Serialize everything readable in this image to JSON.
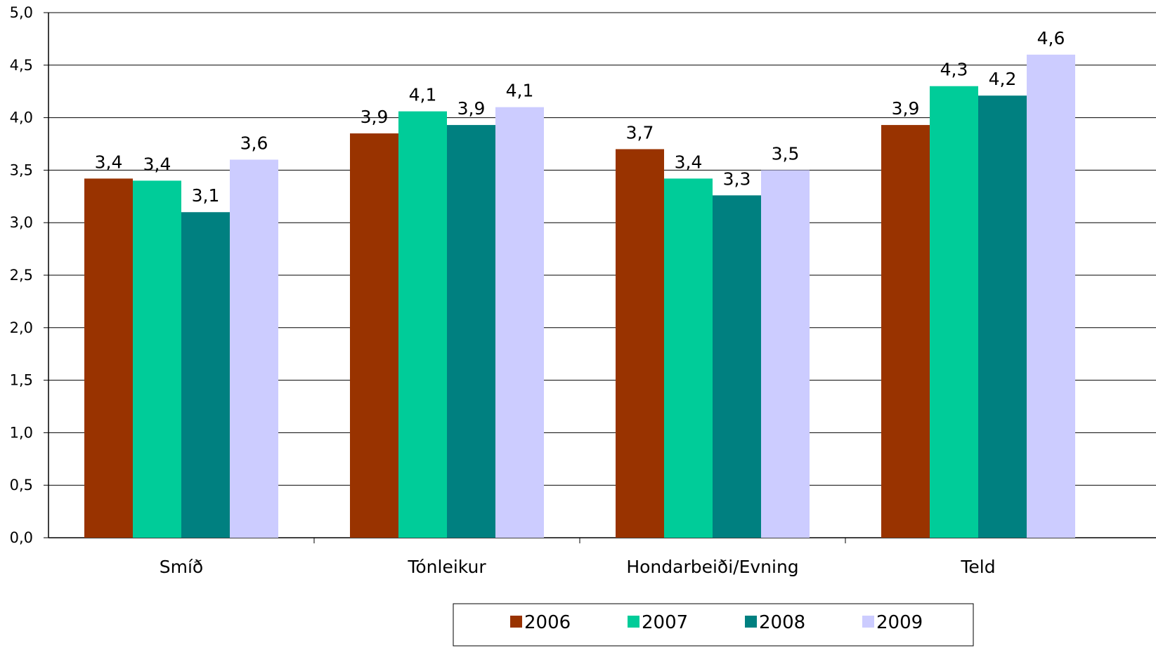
{
  "chart_data": {
    "type": "bar",
    "title": "",
    "xlabel": "",
    "ylabel": "",
    "ylim": [
      0,
      5
    ],
    "yticks": [
      "0,0",
      "0,5",
      "1,0",
      "1,5",
      "2,0",
      "2,5",
      "3,0",
      "3,5",
      "4,0",
      "4,5",
      "5,0"
    ],
    "grid": true,
    "legend_position": "bottom",
    "categories": [
      "Smíð",
      "Tónleikur",
      "Hondarbeiði/Evning",
      "Teld"
    ],
    "series": [
      {
        "name": "2006",
        "color": "#993300",
        "values": [
          3.42,
          3.85,
          3.7,
          3.93
        ],
        "labels": [
          "3,4",
          "3,9",
          "3,7",
          "3,9"
        ]
      },
      {
        "name": "2007",
        "color": "#00CC99",
        "values": [
          3.4,
          4.06,
          3.42,
          4.3
        ],
        "labels": [
          "3,4",
          "4,1",
          "3,4",
          "4,3"
        ]
      },
      {
        "name": "2008",
        "color": "#008080",
        "values": [
          3.1,
          3.93,
          3.26,
          4.21
        ],
        "labels": [
          "3,1",
          "3,9",
          "3,3",
          "4,2"
        ]
      },
      {
        "name": "2009",
        "color": "#CCCCFF",
        "values": [
          3.6,
          4.1,
          3.5,
          4.6
        ],
        "labels": [
          "3,6",
          "4,1",
          "3,5",
          "4,6"
        ]
      }
    ]
  }
}
